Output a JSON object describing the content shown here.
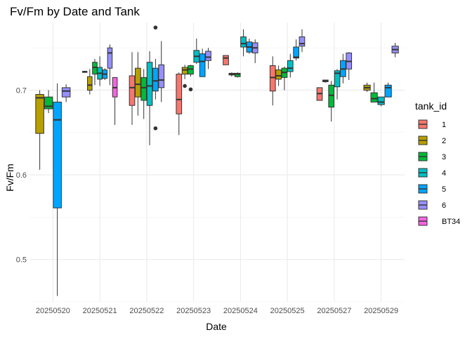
{
  "chart_data": {
    "type": "box",
    "title": "Fv/Fm by Date and Tank",
    "xlabel": "Date",
    "ylabel": "Fv/Fm",
    "ylim": [
      0.45,
      0.78
    ],
    "yticks": [
      0.5,
      0.6,
      0.7
    ],
    "grid": true,
    "legend": {
      "title": "tank_id",
      "position": "right"
    },
    "categories": [
      "20250520",
      "20250521",
      "20250522",
      "20250523",
      "20250524",
      "20250525",
      "20250527",
      "20250529"
    ],
    "series": [
      {
        "name": "1",
        "color": "#F8766D"
      },
      {
        "name": "2",
        "color": "#B79F00"
      },
      {
        "name": "3",
        "color": "#00BA38"
      },
      {
        "name": "4",
        "color": "#00BFC4"
      },
      {
        "name": "5",
        "color": "#00A5FF"
      },
      {
        "name": "6",
        "color": "#9590FF"
      },
      {
        "name": "BT34",
        "color": "#F564E3"
      }
    ],
    "boxes": [
      {
        "date": "20250520",
        "tank": "2",
        "slot": 0,
        "nslots": 4,
        "whisker_low": 0.606,
        "q1": 0.649,
        "median": 0.691,
        "q3": 0.695,
        "whisker_high": 0.7,
        "outliers": []
      },
      {
        "date": "20250520",
        "tank": "3",
        "slot": 1,
        "nslots": 4,
        "whisker_low": 0.673,
        "q1": 0.678,
        "median": 0.681,
        "q3": 0.692,
        "whisker_high": 0.7,
        "outliers": []
      },
      {
        "date": "20250520",
        "tank": "5",
        "slot": 2,
        "nslots": 4,
        "whisker_low": 0.457,
        "q1": 0.561,
        "median": 0.665,
        "q3": 0.686,
        "whisker_high": 0.708,
        "outliers": []
      },
      {
        "date": "20250520",
        "tank": "6",
        "slot": 3,
        "nslots": 4,
        "whisker_low": 0.686,
        "q1": 0.692,
        "median": 0.699,
        "q3": 0.703,
        "whisker_high": 0.707,
        "outliers": []
      },
      {
        "date": "20250521",
        "tank": "1",
        "slot": 0,
        "nslots": 7,
        "whisker_low": 0.721,
        "q1": 0.721,
        "median": 0.722,
        "q3": 0.722,
        "whisker_high": 0.722,
        "outliers": []
      },
      {
        "date": "20250521",
        "tank": "2",
        "slot": 1,
        "nslots": 7,
        "whisker_low": 0.695,
        "q1": 0.7,
        "median": 0.706,
        "q3": 0.716,
        "whisker_high": 0.725,
        "outliers": []
      },
      {
        "date": "20250521",
        "tank": "3",
        "slot": 2,
        "nslots": 7,
        "whisker_low": 0.706,
        "q1": 0.719,
        "median": 0.727,
        "q3": 0.733,
        "whisker_high": 0.737,
        "outliers": []
      },
      {
        "date": "20250521",
        "tank": "4",
        "slot": 3,
        "nslots": 7,
        "whisker_low": 0.705,
        "q1": 0.713,
        "median": 0.72,
        "q3": 0.727,
        "whisker_high": 0.74,
        "outliers": []
      },
      {
        "date": "20250521",
        "tank": "5",
        "slot": 4,
        "nslots": 7,
        "whisker_low": 0.712,
        "q1": 0.714,
        "median": 0.719,
        "q3": 0.724,
        "whisker_high": 0.726,
        "outliers": []
      },
      {
        "date": "20250521",
        "tank": "6",
        "slot": 5,
        "nslots": 7,
        "whisker_low": 0.706,
        "q1": 0.726,
        "median": 0.744,
        "q3": 0.75,
        "whisker_high": 0.754,
        "outliers": []
      },
      {
        "date": "20250521",
        "tank": "BT34",
        "slot": 6,
        "nslots": 7,
        "whisker_low": 0.659,
        "q1": 0.692,
        "median": 0.703,
        "q3": 0.715,
        "whisker_high": 0.715,
        "outliers": []
      },
      {
        "date": "20250522",
        "tank": "1",
        "slot": 0,
        "nslots": 6,
        "whisker_low": 0.659,
        "q1": 0.682,
        "median": 0.703,
        "q3": 0.717,
        "whisker_high": 0.745,
        "outliers": []
      },
      {
        "date": "20250522",
        "tank": "2",
        "slot": 1,
        "nslots": 6,
        "whisker_low": 0.67,
        "q1": 0.692,
        "median": 0.707,
        "q3": 0.726,
        "whisker_high": 0.745,
        "outliers": []
      },
      {
        "date": "20250522",
        "tank": "3",
        "slot": 2,
        "nslots": 6,
        "whisker_low": 0.666,
        "q1": 0.688,
        "median": 0.703,
        "q3": 0.715,
        "whisker_high": 0.725,
        "outliers": []
      },
      {
        "date": "20250522",
        "tank": "4",
        "slot": 3,
        "nslots": 6,
        "whisker_low": 0.635,
        "q1": 0.682,
        "median": 0.705,
        "q3": 0.733,
        "whisker_high": 0.746,
        "outliers": []
      },
      {
        "date": "20250522",
        "tank": "5",
        "slot": 4,
        "nslots": 6,
        "whisker_low": 0.689,
        "q1": 0.699,
        "median": 0.711,
        "q3": 0.726,
        "whisker_high": 0.737,
        "outliers": [
          0.655,
          0.774
        ]
      },
      {
        "date": "20250522",
        "tank": "6",
        "slot": 5,
        "nslots": 6,
        "whisker_low": 0.686,
        "q1": 0.703,
        "median": 0.712,
        "q3": 0.73,
        "whisker_high": 0.758,
        "outliers": []
      },
      {
        "date": "20250523",
        "tank": "1",
        "slot": 0,
        "nslots": 6,
        "whisker_low": 0.647,
        "q1": 0.672,
        "median": 0.689,
        "q3": 0.719,
        "whisker_high": 0.721,
        "outliers": []
      },
      {
        "date": "20250523",
        "tank": "2",
        "slot": 1,
        "nslots": 6,
        "whisker_low": 0.713,
        "q1": 0.719,
        "median": 0.724,
        "q3": 0.727,
        "whisker_high": 0.73,
        "outliers": [
          0.705
        ]
      },
      {
        "date": "20250523",
        "tank": "3",
        "slot": 2,
        "nslots": 6,
        "whisker_low": 0.716,
        "q1": 0.719,
        "median": 0.725,
        "q3": 0.729,
        "whisker_high": 0.73,
        "outliers": [
          0.701
        ]
      },
      {
        "date": "20250523",
        "tank": "4",
        "slot": 3,
        "nslots": 6,
        "whisker_low": 0.731,
        "q1": 0.733,
        "median": 0.74,
        "q3": 0.747,
        "whisker_high": 0.761,
        "outliers": []
      },
      {
        "date": "20250523",
        "tank": "5",
        "slot": 4,
        "nslots": 6,
        "whisker_low": 0.716,
        "q1": 0.716,
        "median": 0.734,
        "q3": 0.743,
        "whisker_high": 0.749,
        "outliers": []
      },
      {
        "date": "20250523",
        "tank": "6",
        "slot": 5,
        "nslots": 6,
        "whisker_low": 0.725,
        "q1": 0.735,
        "median": 0.739,
        "q3": 0.746,
        "whisker_high": 0.75,
        "outliers": []
      },
      {
        "date": "20250524",
        "tank": "1",
        "slot": 0,
        "nslots": 6,
        "whisker_low": 0.73,
        "q1": 0.73,
        "median": 0.738,
        "q3": 0.741,
        "whisker_high": 0.741,
        "outliers": []
      },
      {
        "date": "20250524",
        "tank": "2",
        "slot": 1,
        "nslots": 6,
        "whisker_low": 0.716,
        "q1": 0.718,
        "median": 0.719,
        "q3": 0.72,
        "whisker_high": 0.721,
        "outliers": []
      },
      {
        "date": "20250524",
        "tank": "3",
        "slot": 2,
        "nslots": 6,
        "whisker_low": 0.715,
        "q1": 0.716,
        "median": 0.719,
        "q3": 0.72,
        "whisker_high": 0.721,
        "outliers": []
      },
      {
        "date": "20250524",
        "tank": "4",
        "slot": 3,
        "nslots": 6,
        "whisker_low": 0.74,
        "q1": 0.751,
        "median": 0.755,
        "q3": 0.763,
        "whisker_high": 0.772,
        "outliers": []
      },
      {
        "date": "20250524",
        "tank": "5",
        "slot": 4,
        "nslots": 6,
        "whisker_low": 0.743,
        "q1": 0.745,
        "median": 0.751,
        "q3": 0.757,
        "whisker_high": 0.761,
        "outliers": []
      },
      {
        "date": "20250524",
        "tank": "6",
        "slot": 5,
        "nslots": 6,
        "whisker_low": 0.732,
        "q1": 0.744,
        "median": 0.75,
        "q3": 0.756,
        "whisker_high": 0.76,
        "outliers": []
      },
      {
        "date": "20250525",
        "tank": "1",
        "slot": 0,
        "nslots": 6,
        "whisker_low": 0.682,
        "q1": 0.699,
        "median": 0.715,
        "q3": 0.729,
        "whisker_high": 0.74,
        "outliers": []
      },
      {
        "date": "20250525",
        "tank": "2",
        "slot": 1,
        "nslots": 6,
        "whisker_low": 0.705,
        "q1": 0.713,
        "median": 0.717,
        "q3": 0.724,
        "whisker_high": 0.729,
        "outliers": []
      },
      {
        "date": "20250525",
        "tank": "3",
        "slot": 2,
        "nslots": 6,
        "whisker_low": 0.7,
        "q1": 0.715,
        "median": 0.721,
        "q3": 0.726,
        "whisker_high": 0.728,
        "outliers": []
      },
      {
        "date": "20250525",
        "tank": "4",
        "slot": 3,
        "nslots": 6,
        "whisker_low": 0.715,
        "q1": 0.722,
        "median": 0.726,
        "q3": 0.735,
        "whisker_high": 0.743,
        "outliers": []
      },
      {
        "date": "20250525",
        "tank": "5",
        "slot": 4,
        "nslots": 6,
        "whisker_low": 0.735,
        "q1": 0.738,
        "median": 0.739,
        "q3": 0.751,
        "whisker_high": 0.76,
        "outliers": []
      },
      {
        "date": "20250525",
        "tank": "6",
        "slot": 5,
        "nslots": 6,
        "whisker_low": 0.745,
        "q1": 0.752,
        "median": 0.755,
        "q3": 0.763,
        "whisker_high": 0.772,
        "outliers": []
      },
      {
        "date": "20250527",
        "tank": "1",
        "slot": 0,
        "nslots": 6,
        "whisker_low": 0.688,
        "q1": 0.688,
        "median": 0.696,
        "q3": 0.703,
        "whisker_high": 0.703,
        "outliers": []
      },
      {
        "date": "20250527",
        "tank": "2",
        "slot": 1,
        "nslots": 6,
        "whisker_low": 0.709,
        "q1": 0.71,
        "median": 0.711,
        "q3": 0.712,
        "whisker_high": 0.712,
        "outliers": []
      },
      {
        "date": "20250527",
        "tank": "3",
        "slot": 2,
        "nslots": 6,
        "whisker_low": 0.663,
        "q1": 0.68,
        "median": 0.694,
        "q3": 0.706,
        "whisker_high": 0.711,
        "outliers": []
      },
      {
        "date": "20250527",
        "tank": "4",
        "slot": 3,
        "nslots": 6,
        "whisker_low": 0.689,
        "q1": 0.704,
        "median": 0.72,
        "q3": 0.723,
        "whisker_high": 0.725,
        "outliers": []
      },
      {
        "date": "20250527",
        "tank": "5",
        "slot": 4,
        "nslots": 6,
        "whisker_low": 0.708,
        "q1": 0.716,
        "median": 0.725,
        "q3": 0.735,
        "whisker_high": 0.743,
        "outliers": []
      },
      {
        "date": "20250527",
        "tank": "6",
        "slot": 5,
        "nslots": 6,
        "whisker_low": 0.712,
        "q1": 0.725,
        "median": 0.734,
        "q3": 0.744,
        "whisker_high": 0.745,
        "outliers": []
      },
      {
        "date": "20250529",
        "tank": "2",
        "slot": 0,
        "nslots": 5,
        "whisker_low": 0.698,
        "q1": 0.7,
        "median": 0.703,
        "q3": 0.706,
        "whisker_high": 0.709,
        "outliers": []
      },
      {
        "date": "20250529",
        "tank": "3",
        "slot": 1,
        "nslots": 5,
        "whisker_low": 0.686,
        "q1": 0.686,
        "median": 0.69,
        "q3": 0.697,
        "whisker_high": 0.709,
        "outliers": []
      },
      {
        "date": "20250529",
        "tank": "4",
        "slot": 2,
        "nslots": 5,
        "whisker_low": 0.681,
        "q1": 0.683,
        "median": 0.686,
        "q3": 0.692,
        "whisker_high": 0.692,
        "outliers": []
      },
      {
        "date": "20250529",
        "tank": "5",
        "slot": 3,
        "nslots": 5,
        "whisker_low": 0.692,
        "q1": 0.692,
        "median": 0.703,
        "q3": 0.706,
        "whisker_high": 0.709,
        "outliers": []
      },
      {
        "date": "20250529",
        "tank": "6",
        "slot": 4,
        "nslots": 5,
        "whisker_low": 0.739,
        "q1": 0.744,
        "median": 0.748,
        "q3": 0.752,
        "whisker_high": 0.756,
        "outliers": []
      }
    ]
  }
}
